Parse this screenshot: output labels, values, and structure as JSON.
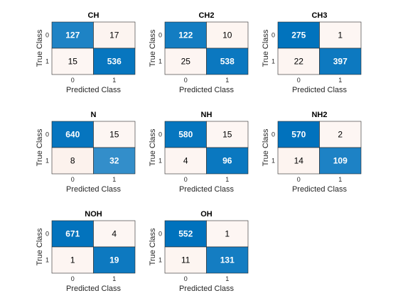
{
  "chart_data": [
    {
      "type": "heatmap",
      "title": "CH",
      "xlabel": "Predicted Class",
      "ylabel": "True Class",
      "x_ticks": [
        "0",
        "1"
      ],
      "y_ticks": [
        "0",
        "1"
      ],
      "matrix": [
        [
          127,
          17
        ],
        [
          15,
          536
        ]
      ]
    },
    {
      "type": "heatmap",
      "title": "CH2",
      "xlabel": "Predicted Class",
      "ylabel": "True Class",
      "x_ticks": [
        "0",
        "1"
      ],
      "y_ticks": [
        "0",
        "1"
      ],
      "matrix": [
        [
          122,
          10
        ],
        [
          25,
          538
        ]
      ]
    },
    {
      "type": "heatmap",
      "title": "CH3",
      "xlabel": "Predicted Class",
      "ylabel": "True Class",
      "x_ticks": [
        "0",
        "1"
      ],
      "y_ticks": [
        "0",
        "1"
      ],
      "matrix": [
        [
          275,
          1
        ],
        [
          22,
          397
        ]
      ]
    },
    {
      "type": "heatmap",
      "title": "N",
      "xlabel": "Predicted Class",
      "ylabel": "True Class",
      "x_ticks": [
        "0",
        "1"
      ],
      "y_ticks": [
        "0",
        "1"
      ],
      "matrix": [
        [
          640,
          15
        ],
        [
          8,
          32
        ]
      ]
    },
    {
      "type": "heatmap",
      "title": "NH",
      "xlabel": "Predicted Class",
      "ylabel": "True Class",
      "x_ticks": [
        "0",
        "1"
      ],
      "y_ticks": [
        "0",
        "1"
      ],
      "matrix": [
        [
          580,
          15
        ],
        [
          4,
          96
        ]
      ]
    },
    {
      "type": "heatmap",
      "title": "NH2",
      "xlabel": "Predicted Class",
      "ylabel": "True Class",
      "x_ticks": [
        "0",
        "1"
      ],
      "y_ticks": [
        "0",
        "1"
      ],
      "matrix": [
        [
          570,
          2
        ],
        [
          14,
          109
        ]
      ]
    },
    {
      "type": "heatmap",
      "title": "NOH",
      "xlabel": "Predicted Class",
      "ylabel": "True Class",
      "x_ticks": [
        "0",
        "1"
      ],
      "y_ticks": [
        "0",
        "1"
      ],
      "matrix": [
        [
          671,
          4
        ],
        [
          1,
          19
        ]
      ]
    },
    {
      "type": "heatmap",
      "title": "OH",
      "xlabel": "Predicted Class",
      "ylabel": "True Class",
      "x_ticks": [
        "0",
        "1"
      ],
      "y_ticks": [
        "0",
        "1"
      ],
      "matrix": [
        [
          552,
          1
        ],
        [
          11,
          131
        ]
      ]
    }
  ],
  "colors": {
    "correct_max": "#0072bd",
    "error_max": "#d95319",
    "cell_border": "#262626",
    "text_dark": "#000000",
    "text_light": "#ffffff"
  }
}
